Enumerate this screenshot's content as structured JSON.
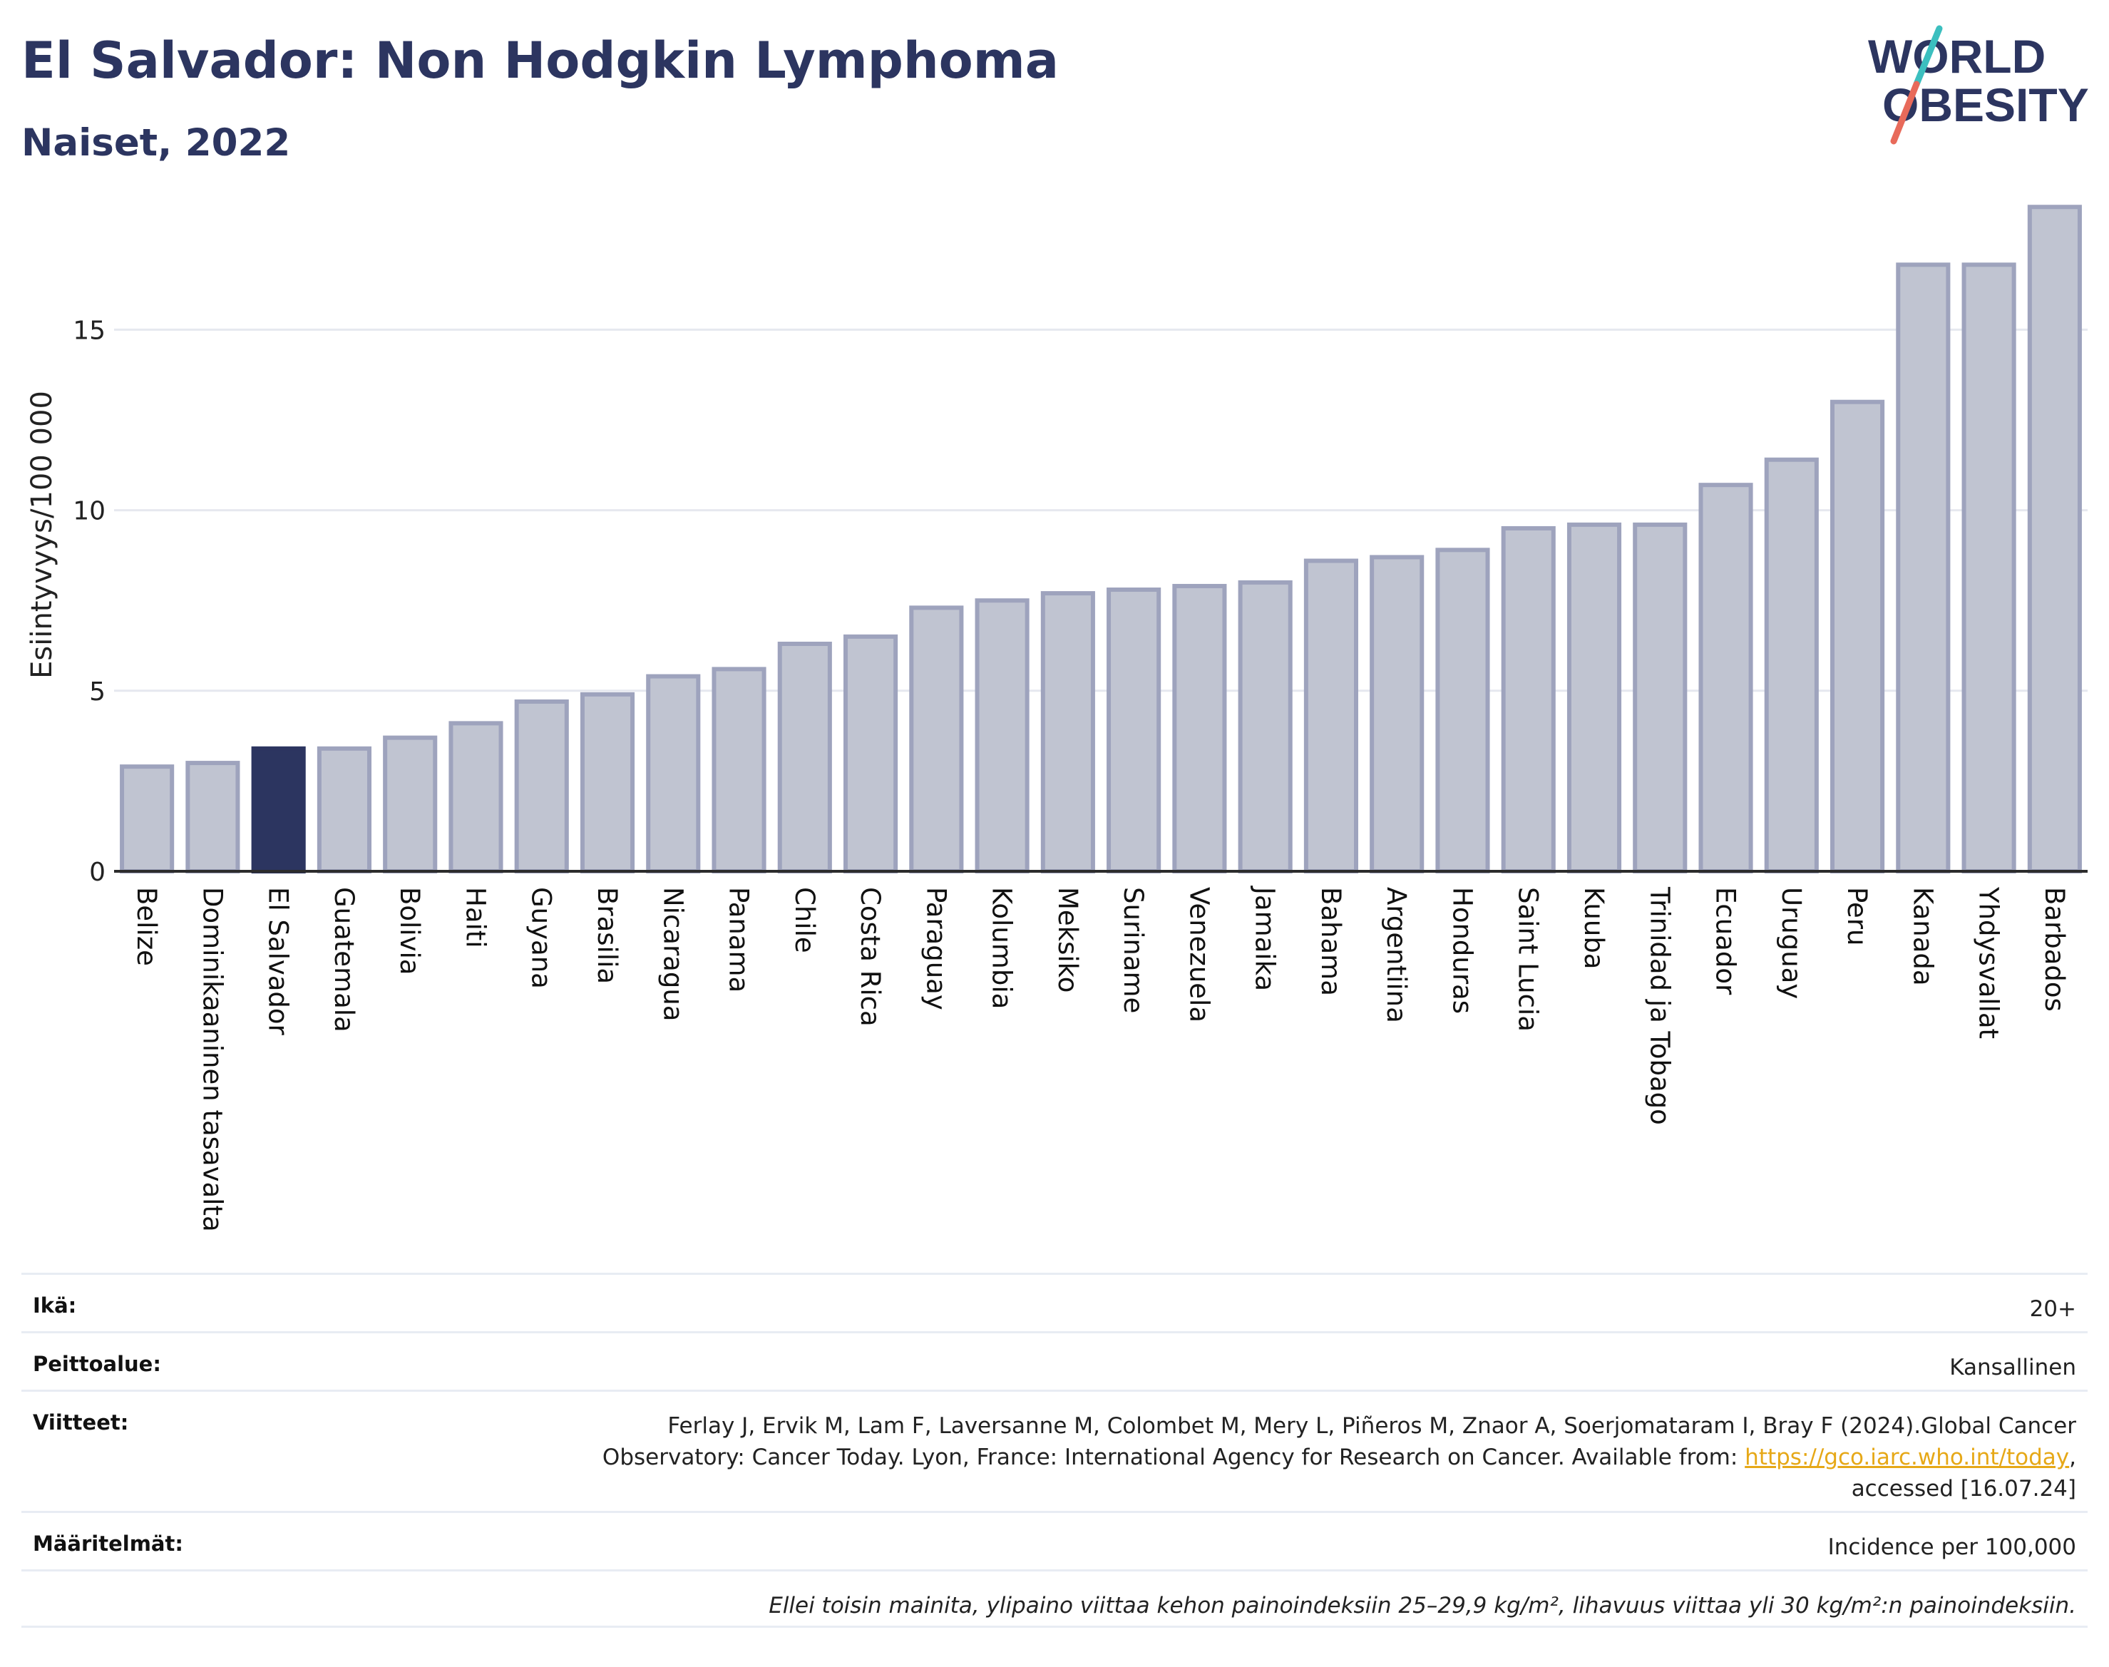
{
  "header": {
    "title": "El Salvador: Non Hodgkin Lymphoma",
    "subtitle": "Naiset, 2022"
  },
  "logo": {
    "line1": "WORLD",
    "line2": "OBESITY"
  },
  "colors": {
    "bar_default": "#c0c4d1",
    "bar_default_stroke": "#9ea3bd",
    "bar_highlight": "#2c3560",
    "axis": "#2c2c2c",
    "grid": "#e6e8ef",
    "logo_navy": "#2c3560",
    "logo_teal": "#3cbfbf",
    "logo_coral": "#e86a5a"
  },
  "chart_data": {
    "type": "bar",
    "ylabel": "Esiintyvyys/100 000",
    "xlabel": "",
    "ylim": [
      0,
      18.8
    ],
    "yticks": [
      0,
      5,
      10,
      15
    ],
    "grid": true,
    "highlight": "El Salvador",
    "categories": [
      "Belize",
      "Dominikaaninen tasavalta",
      "El Salvador",
      "Guatemala",
      "Bolivia",
      "Haiti",
      "Guyana",
      "Brasilia",
      "Nicaragua",
      "Panama",
      "Chile",
      "Costa Rica",
      "Paraguay",
      "Kolumbia",
      "Meksiko",
      "Suriname",
      "Venezuela",
      "Jamaika",
      "Bahama",
      "Argentiina",
      "Honduras",
      "Saint Lucia",
      "Kuuba",
      "Trinidad ja Tobago",
      "Ecuador",
      "Uruguay",
      "Peru",
      "Kanada",
      "Yhdysvallat",
      "Barbados"
    ],
    "values": [
      2.9,
      3.0,
      3.4,
      3.4,
      3.7,
      4.1,
      4.7,
      4.9,
      5.4,
      5.6,
      6.3,
      6.5,
      7.3,
      7.5,
      7.7,
      7.8,
      7.9,
      8.0,
      8.6,
      8.7,
      8.9,
      9.5,
      9.6,
      9.6,
      10.7,
      11.4,
      13.0,
      16.8,
      16.8,
      18.4
    ]
  },
  "meta": {
    "age_label": "Ikä:",
    "age_value": "20+",
    "coverage_label": "Peittoalue:",
    "coverage_value": "Kansallinen",
    "refs_label": "Viitteet:",
    "refs_line1": "Ferlay J, Ervik M, Lam F, Laversanne M, Colombet M, Mery L, Piñeros M, Znaor A, Soerjomataram I, Bray F (2024).Global Cancer",
    "refs_line2_pre": "Observatory: Cancer Today. Lyon, France: International Agency for Research on Cancer. Available from: ",
    "refs_link": "https://gco.iarc.who.int/today",
    "refs_line2_post": ",",
    "refs_line3": "accessed [16.07.24]",
    "defs_label": "Määritelmät:",
    "defs_value": "Incidence per 100,000",
    "note": "Ellei toisin mainita, ylipaino viittaa kehon painoindeksiin 25–29,9 kg/m², lihavuus viittaa yli 30 kg/m²:n painoindeksiin."
  }
}
